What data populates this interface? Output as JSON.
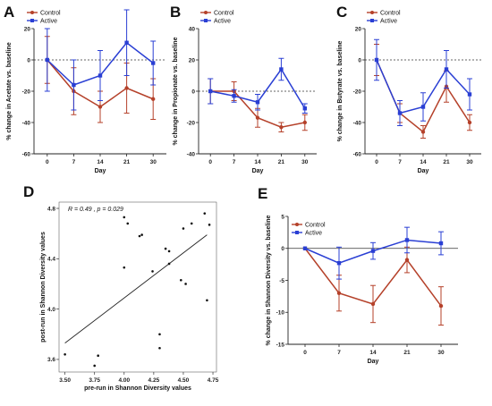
{
  "chart_data": [
    {
      "panel": "A",
      "type": "line",
      "x": [
        0,
        7,
        14,
        21,
        30
      ],
      "xlabel": "Day",
      "ylabel": "% change in Acetate vs. baseline",
      "ylim": [
        -60,
        20
      ],
      "yticks": [
        -60,
        -40,
        -20,
        0,
        20
      ],
      "grid": false,
      "legend": "top-left",
      "series": [
        {
          "name": "Control",
          "color": "#b5412a",
          "values": [
            0,
            -20,
            -30,
            -18,
            -25
          ],
          "err": [
            15,
            15,
            10,
            16,
            13
          ]
        },
        {
          "name": "Active",
          "color": "#2a3fd4",
          "values": [
            0,
            -16,
            -10,
            11,
            -2
          ],
          "err": [
            20,
            16,
            16,
            21,
            14
          ]
        }
      ]
    },
    {
      "panel": "B",
      "type": "line",
      "x": [
        0,
        7,
        14,
        21,
        30
      ],
      "xlabel": "Day",
      "ylabel": "% change in Propionate vs. baseline",
      "ylim": [
        -40,
        40
      ],
      "yticks": [
        -40,
        -20,
        0,
        20,
        40
      ],
      "grid": false,
      "legend": "top-left",
      "series": [
        {
          "name": "Control",
          "color": "#b5412a",
          "values": [
            0,
            0,
            -17,
            -23,
            -20
          ],
          "err": [
            8,
            6,
            6,
            3,
            5
          ]
        },
        {
          "name": "Active",
          "color": "#2a3fd4",
          "values": [
            0,
            -3,
            -7,
            14,
            -11
          ],
          "err": [
            8,
            4,
            5,
            7,
            3
          ]
        }
      ]
    },
    {
      "panel": "C",
      "type": "line",
      "x": [
        0,
        7,
        14,
        21,
        30
      ],
      "xlabel": "Day",
      "ylabel": "% change in Butyrate vs. baseline",
      "ylim": [
        -60,
        20
      ],
      "yticks": [
        -60,
        -40,
        -20,
        0,
        20
      ],
      "grid": false,
      "legend": "top-left",
      "series": [
        {
          "name": "Control",
          "color": "#b5412a",
          "values": [
            0,
            -34,
            -46,
            -17,
            -40
          ],
          "err": [
            10,
            6,
            4,
            10,
            5
          ]
        },
        {
          "name": "Active",
          "color": "#2a3fd4",
          "values": [
            0,
            -34,
            -30,
            -6,
            -22
          ],
          "err": [
            13,
            8,
            9,
            12,
            10
          ]
        }
      ]
    },
    {
      "panel": "D",
      "type": "scatter",
      "xlabel": "pre-run in Shannon Diversity values",
      "ylabel": "post-run in Shannon Diversity values",
      "xlim": [
        3.45,
        4.78
      ],
      "ylim": [
        3.5,
        4.85
      ],
      "xticks": [
        3.5,
        3.75,
        4.0,
        4.25,
        4.5,
        4.75
      ],
      "xticklabels": [
        "3.50",
        "3.75",
        "4.00",
        "4.25",
        "4.50",
        "4.75"
      ],
      "yticks": [
        3.6,
        4.0,
        4.4,
        4.8
      ],
      "yticklabels": [
        "3.6",
        "4.0",
        "4.4",
        "4.8"
      ],
      "annotation": "R = 0.49 , p = 0.029",
      "fit_line": {
        "x": [
          3.5,
          4.7
        ],
        "y": [
          3.73,
          4.59
        ]
      },
      "points": [
        {
          "x": 3.5,
          "y": 3.64
        },
        {
          "x": 3.75,
          "y": 3.55
        },
        {
          "x": 3.78,
          "y": 3.63
        },
        {
          "x": 4.0,
          "y": 4.73
        },
        {
          "x": 4.03,
          "y": 4.68
        },
        {
          "x": 4.0,
          "y": 4.33
        },
        {
          "x": 4.13,
          "y": 4.58
        },
        {
          "x": 4.15,
          "y": 4.59
        },
        {
          "x": 4.24,
          "y": 4.3
        },
        {
          "x": 4.3,
          "y": 3.8
        },
        {
          "x": 4.3,
          "y": 3.69
        },
        {
          "x": 4.35,
          "y": 4.48
        },
        {
          "x": 4.38,
          "y": 4.46
        },
        {
          "x": 4.38,
          "y": 4.36
        },
        {
          "x": 4.48,
          "y": 4.23
        },
        {
          "x": 4.5,
          "y": 4.64
        },
        {
          "x": 4.52,
          "y": 4.2
        },
        {
          "x": 4.57,
          "y": 4.68
        },
        {
          "x": 4.68,
          "y": 4.76
        },
        {
          "x": 4.7,
          "y": 4.07
        },
        {
          "x": 4.72,
          "y": 4.67
        }
      ]
    },
    {
      "panel": "E",
      "type": "line",
      "x": [
        0,
        7,
        14,
        21,
        30
      ],
      "xlabel": "Day",
      "ylabel": "% change in Shannon Diversity vs. baseline",
      "ylim": [
        -15,
        5
      ],
      "yticks": [
        -15,
        -10,
        -5,
        0,
        5
      ],
      "grid": false,
      "legend": "top-left",
      "series": [
        {
          "name": "Control",
          "color": "#b5412a",
          "values": [
            0,
            -7,
            -8.7,
            -1.8,
            -9
          ],
          "err": [
            0,
            2.8,
            2.9,
            2.0,
            3.0
          ]
        },
        {
          "name": "Active",
          "color": "#2a3fd4",
          "values": [
            0,
            -2.3,
            -0.4,
            1.3,
            0.8
          ],
          "err": [
            0,
            2.5,
            1.3,
            2.0,
            1.8
          ]
        }
      ]
    }
  ],
  "panel_labels": [
    "A",
    "B",
    "C",
    "D",
    "E"
  ]
}
